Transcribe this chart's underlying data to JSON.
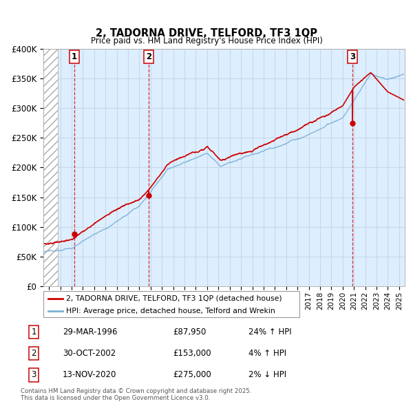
{
  "title": "2, TADORNA DRIVE, TELFORD, TF3 1QP",
  "subtitle": "Price paid vs. HM Land Registry's House Price Index (HPI)",
  "sale_label": "2, TADORNA DRIVE, TELFORD, TF3 1QP (detached house)",
  "hpi_label": "HPI: Average price, detached house, Telford and Wrekin",
  "copyright": "Contains HM Land Registry data © Crown copyright and database right 2025.\nThis data is licensed under the Open Government Licence v3.0.",
  "transactions": [
    {
      "num": 1,
      "date": "29-MAR-1996",
      "price": 87950,
      "pct": "24%",
      "dir": "↑",
      "x_year": 1996.23
    },
    {
      "num": 2,
      "date": "30-OCT-2002",
      "price": 153000,
      "pct": "4%",
      "dir": "↑",
      "x_year": 2002.83
    },
    {
      "num": 3,
      "date": "13-NOV-2020",
      "price": 275000,
      "pct": "2%",
      "dir": "↓",
      "x_year": 2020.87
    }
  ],
  "ylim": [
    0,
    400000
  ],
  "xlim_start": 1993.5,
  "xlim_end": 2025.5,
  "price_color": "#cc0000",
  "hpi_color": "#7ab0d4",
  "grid_color": "#c8d8e8",
  "bg_color": "#ddeeff",
  "hatch_color": "#aaaaaa",
  "marker_color": "#cc0000",
  "fig_width": 6.0,
  "fig_height": 5.9
}
